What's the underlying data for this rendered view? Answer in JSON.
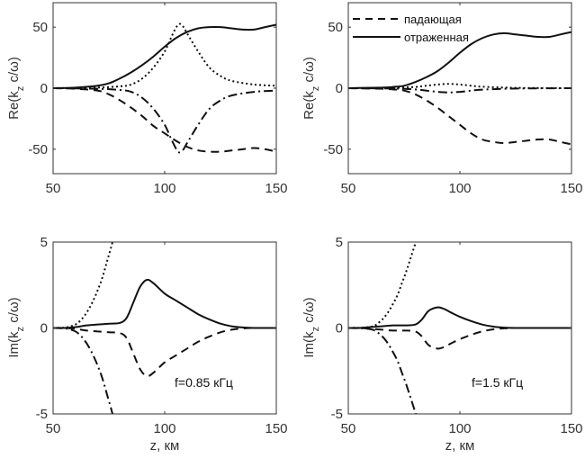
{
  "chart_data": [
    {
      "id": "re-085",
      "type": "line",
      "title": "",
      "xlabel": "",
      "ylabel": "Re(k_z c/ω)",
      "xlim": [
        50,
        150
      ],
      "ylim": [
        -70,
        70
      ],
      "xticks": [
        50,
        100,
        150
      ],
      "yticks": [
        -50,
        0,
        50
      ],
      "grid": false,
      "annotation": "",
      "legend": null,
      "series": [
        {
          "name": "отраженная",
          "style": "solid",
          "x": [
            50,
            60,
            70,
            75,
            80,
            85,
            90,
            95,
            100,
            105,
            110,
            115,
            120,
            125,
            130,
            135,
            140,
            145,
            150
          ],
          "y": [
            0,
            0.5,
            2,
            4,
            8,
            13,
            19,
            26,
            34,
            41,
            46,
            49,
            50,
            50,
            49,
            48,
            48,
            50,
            52
          ]
        },
        {
          "name": "падающая",
          "style": "dashed",
          "x": [
            50,
            60,
            70,
            75,
            80,
            85,
            90,
            95,
            100,
            105,
            110,
            115,
            120,
            125,
            130,
            135,
            140,
            145,
            150
          ],
          "y": [
            0,
            -0.5,
            -2,
            -5,
            -10,
            -16,
            -23,
            -31,
            -37,
            -43,
            -48,
            -51,
            -52,
            -52,
            -51,
            -50,
            -49,
            -50,
            -52
          ]
        },
        {
          "name": "dotted",
          "style": "dotted",
          "x": [
            50,
            70,
            80,
            85,
            90,
            95,
            100,
            103,
            106,
            108,
            110,
            115,
            120,
            125,
            130,
            140,
            150
          ],
          "y": [
            0,
            0.5,
            1.5,
            3,
            8,
            17,
            30,
            42,
            52,
            51,
            45,
            30,
            17,
            10,
            6,
            3,
            2
          ]
        },
        {
          "name": "dash-dot",
          "style": "dashdot",
          "x": [
            50,
            70,
            80,
            85,
            90,
            95,
            100,
            103,
            106,
            108,
            110,
            115,
            120,
            125,
            130,
            140,
            150
          ],
          "y": [
            0,
            -0.5,
            -1.5,
            -3,
            -8,
            -17,
            -30,
            -42,
            -52,
            -51,
            -45,
            -30,
            -17,
            -10,
            -6,
            -3,
            -2
          ]
        }
      ]
    },
    {
      "id": "re-15",
      "type": "line",
      "title": "",
      "xlabel": "",
      "ylabel": "Re(k_z c/ω)",
      "xlim": [
        50,
        150
      ],
      "ylim": [
        -70,
        70
      ],
      "xticks": [
        50,
        100,
        150
      ],
      "yticks": [
        -50,
        0,
        50
      ],
      "grid": false,
      "annotation": "",
      "legend": {
        "placement": "top-left",
        "entries": [
          {
            "label": "падающая",
            "style": "dashed"
          },
          {
            "label": "отраженная",
            "style": "solid"
          }
        ]
      },
      "series": [
        {
          "name": "отраженная",
          "style": "solid",
          "x": [
            50,
            65,
            70,
            75,
            80,
            85,
            90,
            95,
            100,
            105,
            110,
            115,
            120,
            125,
            130,
            135,
            140,
            145,
            150
          ],
          "y": [
            0,
            0.5,
            1,
            2,
            5,
            9,
            14,
            21,
            29,
            36,
            41,
            44,
            45,
            44,
            43,
            42,
            42,
            44,
            46
          ]
        },
        {
          "name": "падающая",
          "style": "dashed",
          "x": [
            50,
            65,
            70,
            75,
            80,
            85,
            90,
            95,
            100,
            105,
            110,
            115,
            120,
            125,
            130,
            135,
            140,
            145,
            150
          ],
          "y": [
            0,
            -0.5,
            -1,
            -2,
            -5,
            -10,
            -16,
            -23,
            -30,
            -37,
            -42,
            -44,
            -45,
            -44,
            -43,
            -42,
            -42,
            -44,
            -46
          ]
        },
        {
          "name": "dotted",
          "style": "dotted",
          "x": [
            50,
            70,
            80,
            85,
            90,
            95,
            100,
            105,
            110,
            120,
            130,
            150
          ],
          "y": [
            0,
            0.3,
            1,
            2,
            3,
            3.5,
            3,
            2,
            1.2,
            0.5,
            0.2,
            0
          ]
        },
        {
          "name": "dash-dot",
          "style": "dashdot",
          "x": [
            50,
            70,
            80,
            85,
            90,
            95,
            100,
            105,
            110,
            120,
            130,
            150
          ],
          "y": [
            0,
            -0.3,
            -1,
            -2,
            -3,
            -3.5,
            -3,
            -2,
            -1.2,
            -0.5,
            -0.2,
            0
          ]
        }
      ]
    },
    {
      "id": "im-085",
      "type": "line",
      "title": "",
      "xlabel": "z, км",
      "ylabel": "Im(k_z c/ω)",
      "xlim": [
        50,
        150
      ],
      "ylim": [
        -5,
        5
      ],
      "xticks": [
        50,
        100,
        150
      ],
      "yticks": [
        -5,
        0,
        5
      ],
      "grid": false,
      "annotation": "f=0.85 кГц",
      "legend": null,
      "series": [
        {
          "name": "отраженная",
          "style": "solid",
          "x": [
            50,
            55,
            60,
            65,
            70,
            75,
            80,
            83,
            86,
            89,
            92,
            95,
            100,
            105,
            110,
            115,
            120,
            125,
            130,
            135,
            140,
            150
          ],
          "y": [
            0,
            0,
            0.05,
            0.15,
            0.2,
            0.25,
            0.3,
            0.6,
            1.5,
            2.4,
            2.8,
            2.6,
            2.0,
            1.6,
            1.2,
            0.8,
            0.5,
            0.25,
            0.1,
            0.03,
            0,
            0
          ]
        },
        {
          "name": "падающая",
          "style": "dashed",
          "x": [
            50,
            55,
            60,
            65,
            70,
            75,
            80,
            83,
            86,
            89,
            92,
            95,
            100,
            105,
            110,
            115,
            120,
            125,
            130,
            135,
            140,
            150
          ],
          "y": [
            0,
            0,
            -0.05,
            -0.15,
            -0.2,
            -0.25,
            -0.3,
            -0.6,
            -1.5,
            -2.4,
            -2.8,
            -2.6,
            -2.0,
            -1.6,
            -1.2,
            -0.8,
            -0.5,
            -0.25,
            -0.1,
            -0.03,
            0,
            0
          ]
        },
        {
          "name": "dotted",
          "style": "dotted",
          "x": [
            50,
            55,
            58,
            60,
            62,
            64,
            66,
            68,
            70,
            72,
            74,
            76,
            77
          ],
          "y": [
            0,
            0.02,
            0.1,
            0.2,
            0.4,
            0.7,
            1.1,
            1.6,
            2.2,
            2.9,
            3.8,
            4.7,
            5.2
          ]
        },
        {
          "name": "dash-dot",
          "style": "dashdot",
          "x": [
            50,
            55,
            58,
            60,
            62,
            64,
            66,
            68,
            70,
            72,
            74,
            76,
            77
          ],
          "y": [
            0,
            -0.02,
            -0.1,
            -0.2,
            -0.4,
            -0.7,
            -1.1,
            -1.6,
            -2.2,
            -2.9,
            -3.8,
            -4.7,
            -5.2
          ]
        }
      ]
    },
    {
      "id": "im-15",
      "type": "line",
      "title": "",
      "xlabel": "z, км",
      "ylabel": "Im(k_z c/ω)",
      "xlim": [
        50,
        150
      ],
      "ylim": [
        -5,
        5
      ],
      "xticks": [
        50,
        100,
        150
      ],
      "yticks": [
        -5,
        0,
        5
      ],
      "grid": false,
      "annotation": "f=1.5 кГц",
      "legend": null,
      "series": [
        {
          "name": "отраженная",
          "style": "solid",
          "x": [
            50,
            55,
            60,
            65,
            70,
            75,
            80,
            83,
            86,
            90,
            93,
            96,
            100,
            105,
            110,
            115,
            120,
            125,
            130,
            150
          ],
          "y": [
            0,
            0,
            0.05,
            0.1,
            0.15,
            0.15,
            0.2,
            0.5,
            1.0,
            1.2,
            1.1,
            0.9,
            0.65,
            0.4,
            0.2,
            0.08,
            0.02,
            0,
            0,
            0
          ]
        },
        {
          "name": "падающая",
          "style": "dashed",
          "x": [
            50,
            55,
            60,
            65,
            70,
            75,
            80,
            83,
            86,
            90,
            93,
            96,
            100,
            105,
            110,
            115,
            120,
            125,
            130,
            150
          ],
          "y": [
            0,
            0,
            -0.05,
            -0.1,
            -0.15,
            -0.15,
            -0.2,
            -0.5,
            -1.0,
            -1.2,
            -1.1,
            -0.9,
            -0.65,
            -0.4,
            -0.2,
            -0.08,
            -0.02,
            0,
            0,
            0
          ]
        },
        {
          "name": "dotted",
          "style": "dotted",
          "x": [
            50,
            58,
            62,
            64,
            66,
            68,
            70,
            72,
            74,
            76,
            78,
            80,
            81
          ],
          "y": [
            0,
            0.03,
            0.15,
            0.35,
            0.6,
            0.95,
            1.4,
            1.9,
            2.6,
            3.3,
            4.1,
            4.9,
            5.3
          ]
        },
        {
          "name": "dash-dot",
          "style": "dashdot",
          "x": [
            50,
            58,
            62,
            64,
            66,
            68,
            70,
            72,
            74,
            76,
            78,
            80,
            81
          ],
          "y": [
            0,
            -0.03,
            -0.15,
            -0.35,
            -0.6,
            -0.95,
            -1.4,
            -1.9,
            -2.6,
            -3.3,
            -4.1,
            -4.9,
            -5.3
          ]
        }
      ]
    }
  ]
}
